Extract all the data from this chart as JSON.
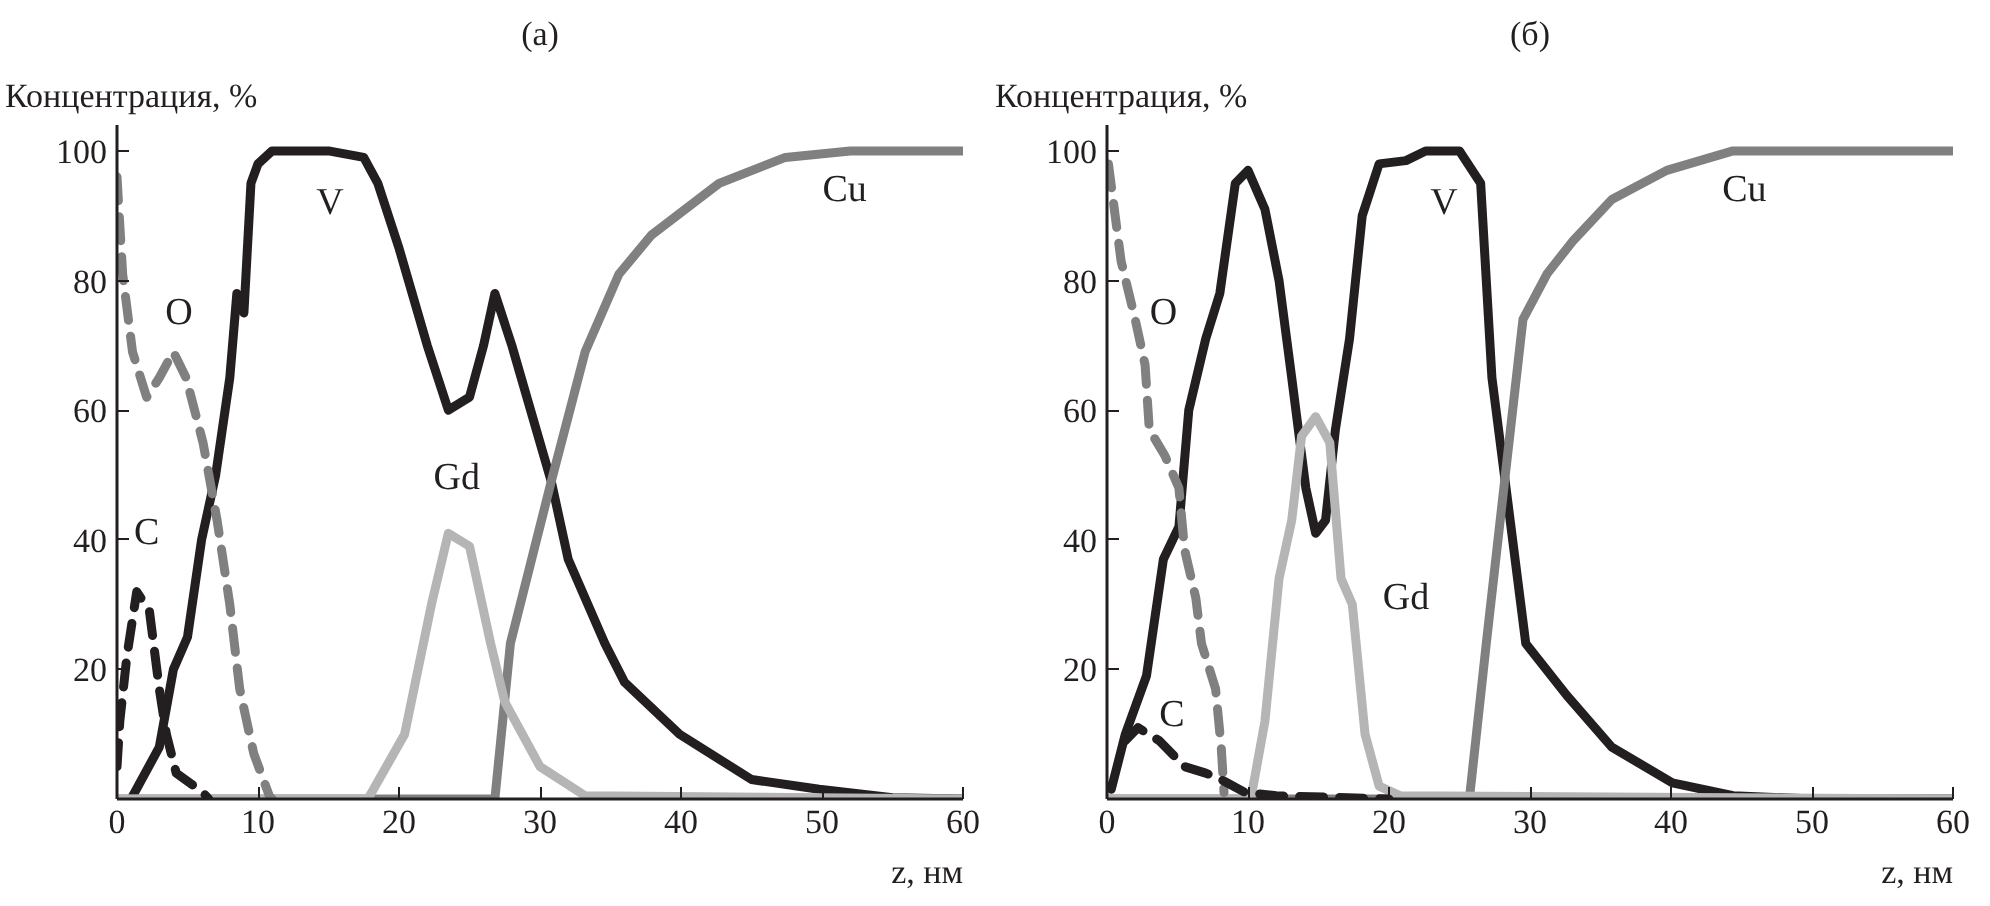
{
  "chart_data": [
    {
      "type": "line",
      "title": "(а)",
      "ylabel": "Концентрация, %",
      "xlabel": "z, нм",
      "xlim": [
        0,
        60
      ],
      "ylim": [
        0,
        104
      ],
      "xticks": [
        0,
        10,
        20,
        30,
        40,
        50,
        60
      ],
      "yticks": [
        20,
        40,
        60,
        80,
        100
      ],
      "series": [
        {
          "name": "V",
          "color": "#231f20",
          "line_style": "solid",
          "x": [
            1,
            3,
            4,
            5,
            6,
            7,
            8,
            8.5,
            9,
            9.5,
            10,
            11,
            12,
            15,
            17.5,
            18.5,
            20,
            22,
            23.5,
            25,
            26,
            26.8,
            28,
            30.8,
            32,
            34.6,
            36,
            39.9,
            45,
            49.8,
            55,
            60
          ],
          "values": [
            0,
            8,
            20,
            25,
            40,
            50,
            65,
            78,
            75,
            95,
            98,
            100,
            100,
            100,
            99,
            95,
            85,
            70,
            60,
            62,
            70,
            78,
            70,
            49,
            37,
            24,
            18,
            10,
            3,
            1.5,
            0.2,
            0
          ]
        },
        {
          "name": "Cu",
          "color": "#808080",
          "line_style": "solid",
          "x": [
            0,
            26.8,
            27.9,
            30.8,
            33.2,
            35.6,
            37.9,
            42.7,
            47.4,
            52,
            60
          ],
          "values": [
            0,
            0,
            24,
            49,
            69,
            81,
            87,
            95,
            99,
            100,
            100
          ]
        },
        {
          "name": "Gd",
          "color": "#b5b5b5",
          "line_style": "solid",
          "x": [
            0,
            17.8,
            20.4,
            22.3,
            23.5,
            25,
            26.5,
            27.5,
            30,
            33.2,
            60
          ],
          "values": [
            0,
            0,
            10,
            30,
            41,
            39,
            24,
            15,
            5,
            0.5,
            0
          ]
        },
        {
          "name": "O",
          "color": "#808080",
          "line_style": "dashed",
          "x": [
            0,
            0.4,
            1.1,
            2.1,
            3,
            4,
            4.9,
            6.1,
            7.1,
            8,
            8.7,
            9.7,
            10.8,
            11
          ],
          "values": [
            96,
            81,
            69,
            62,
            65,
            69,
            65,
            55,
            43,
            30,
            17,
            7,
            0.5,
            0
          ]
        },
        {
          "name": "C",
          "color": "#231f20",
          "line_style": "dashed",
          "x": [
            0,
            0.2,
            0.7,
            1.4,
            2.3,
            3,
            3.5,
            4.2,
            6.1,
            6.5
          ],
          "values": [
            5,
            12,
            22,
            32,
            29,
            17,
            10,
            4,
            1,
            0
          ]
        }
      ]
    },
    {
      "type": "line",
      "title": "(б)",
      "ylabel": "Концентрация, %",
      "xlabel": "z, нм",
      "xlim": [
        0,
        60
      ],
      "ylim": [
        0,
        104
      ],
      "xticks": [
        0,
        10,
        20,
        30,
        40,
        50,
        60
      ],
      "yticks": [
        20,
        40,
        60,
        80,
        100
      ],
      "series": [
        {
          "name": "V",
          "color": "#231f20",
          "line_style": "solid",
          "x": [
            0,
            0.3,
            1.3,
            2.8,
            4,
            5.1,
            5.8,
            7,
            8,
            9.1,
            10,
            11.2,
            12.2,
            13.1,
            14.1,
            14.8,
            15.5,
            16.2,
            17.2,
            18.1,
            19.3,
            21.2,
            22.6,
            25,
            26.5,
            27.3,
            28.3,
            29.7,
            32.6,
            35.8,
            40.1,
            44.4,
            50,
            60
          ],
          "values": [
            2,
            1.5,
            10,
            19,
            37,
            42,
            60,
            71,
            78,
            95,
            97,
            91,
            80,
            65,
            48,
            41,
            43,
            57,
            71,
            90,
            98,
            98.5,
            100,
            100,
            95,
            65,
            48,
            24,
            16,
            8,
            2.5,
            0.5,
            0,
            0
          ]
        },
        {
          "name": "Cu",
          "color": "#808080",
          "line_style": "solid",
          "x": [
            0,
            25.7,
            26.9,
            28.3,
            29.5,
            31.2,
            33,
            35.8,
            39.7,
            44.4,
            60
          ],
          "values": [
            0,
            0,
            24,
            51,
            74,
            81,
            86,
            92.5,
            97,
            100,
            100
          ]
        },
        {
          "name": "Gd",
          "color": "#b5b5b5",
          "line_style": "solid",
          "x": [
            0,
            10.2,
            11.2,
            12.2,
            13.1,
            13.8,
            14.8,
            15.8,
            16.6,
            17.4,
            18.3,
            19.3,
            20.8,
            60
          ],
          "values": [
            0,
            0,
            12,
            34,
            43,
            56,
            59,
            55,
            34,
            30,
            10,
            2,
            0.5,
            0
          ]
        },
        {
          "name": "O",
          "color": "#808080",
          "line_style": "dashed",
          "x": [
            0.1,
            1,
            2,
            2.7,
            3,
            4.1,
            5.1,
            5.5,
            6.3,
            6.7,
            7.7,
            8.1,
            8.3
          ],
          "values": [
            98,
            83,
            74,
            67,
            57,
            53,
            48,
            38.5,
            31,
            24,
            17,
            8,
            1
          ]
        },
        {
          "name": "C",
          "color": "#231f20",
          "line_style": "dashed",
          "x": [
            1.3,
            2.2,
            3.7,
            5.5,
            7,
            8.1,
            9.8,
            12,
            20
          ],
          "values": [
            9,
            11,
            9,
            5,
            4,
            3,
            1,
            0.5,
            0
          ]
        }
      ]
    }
  ]
}
